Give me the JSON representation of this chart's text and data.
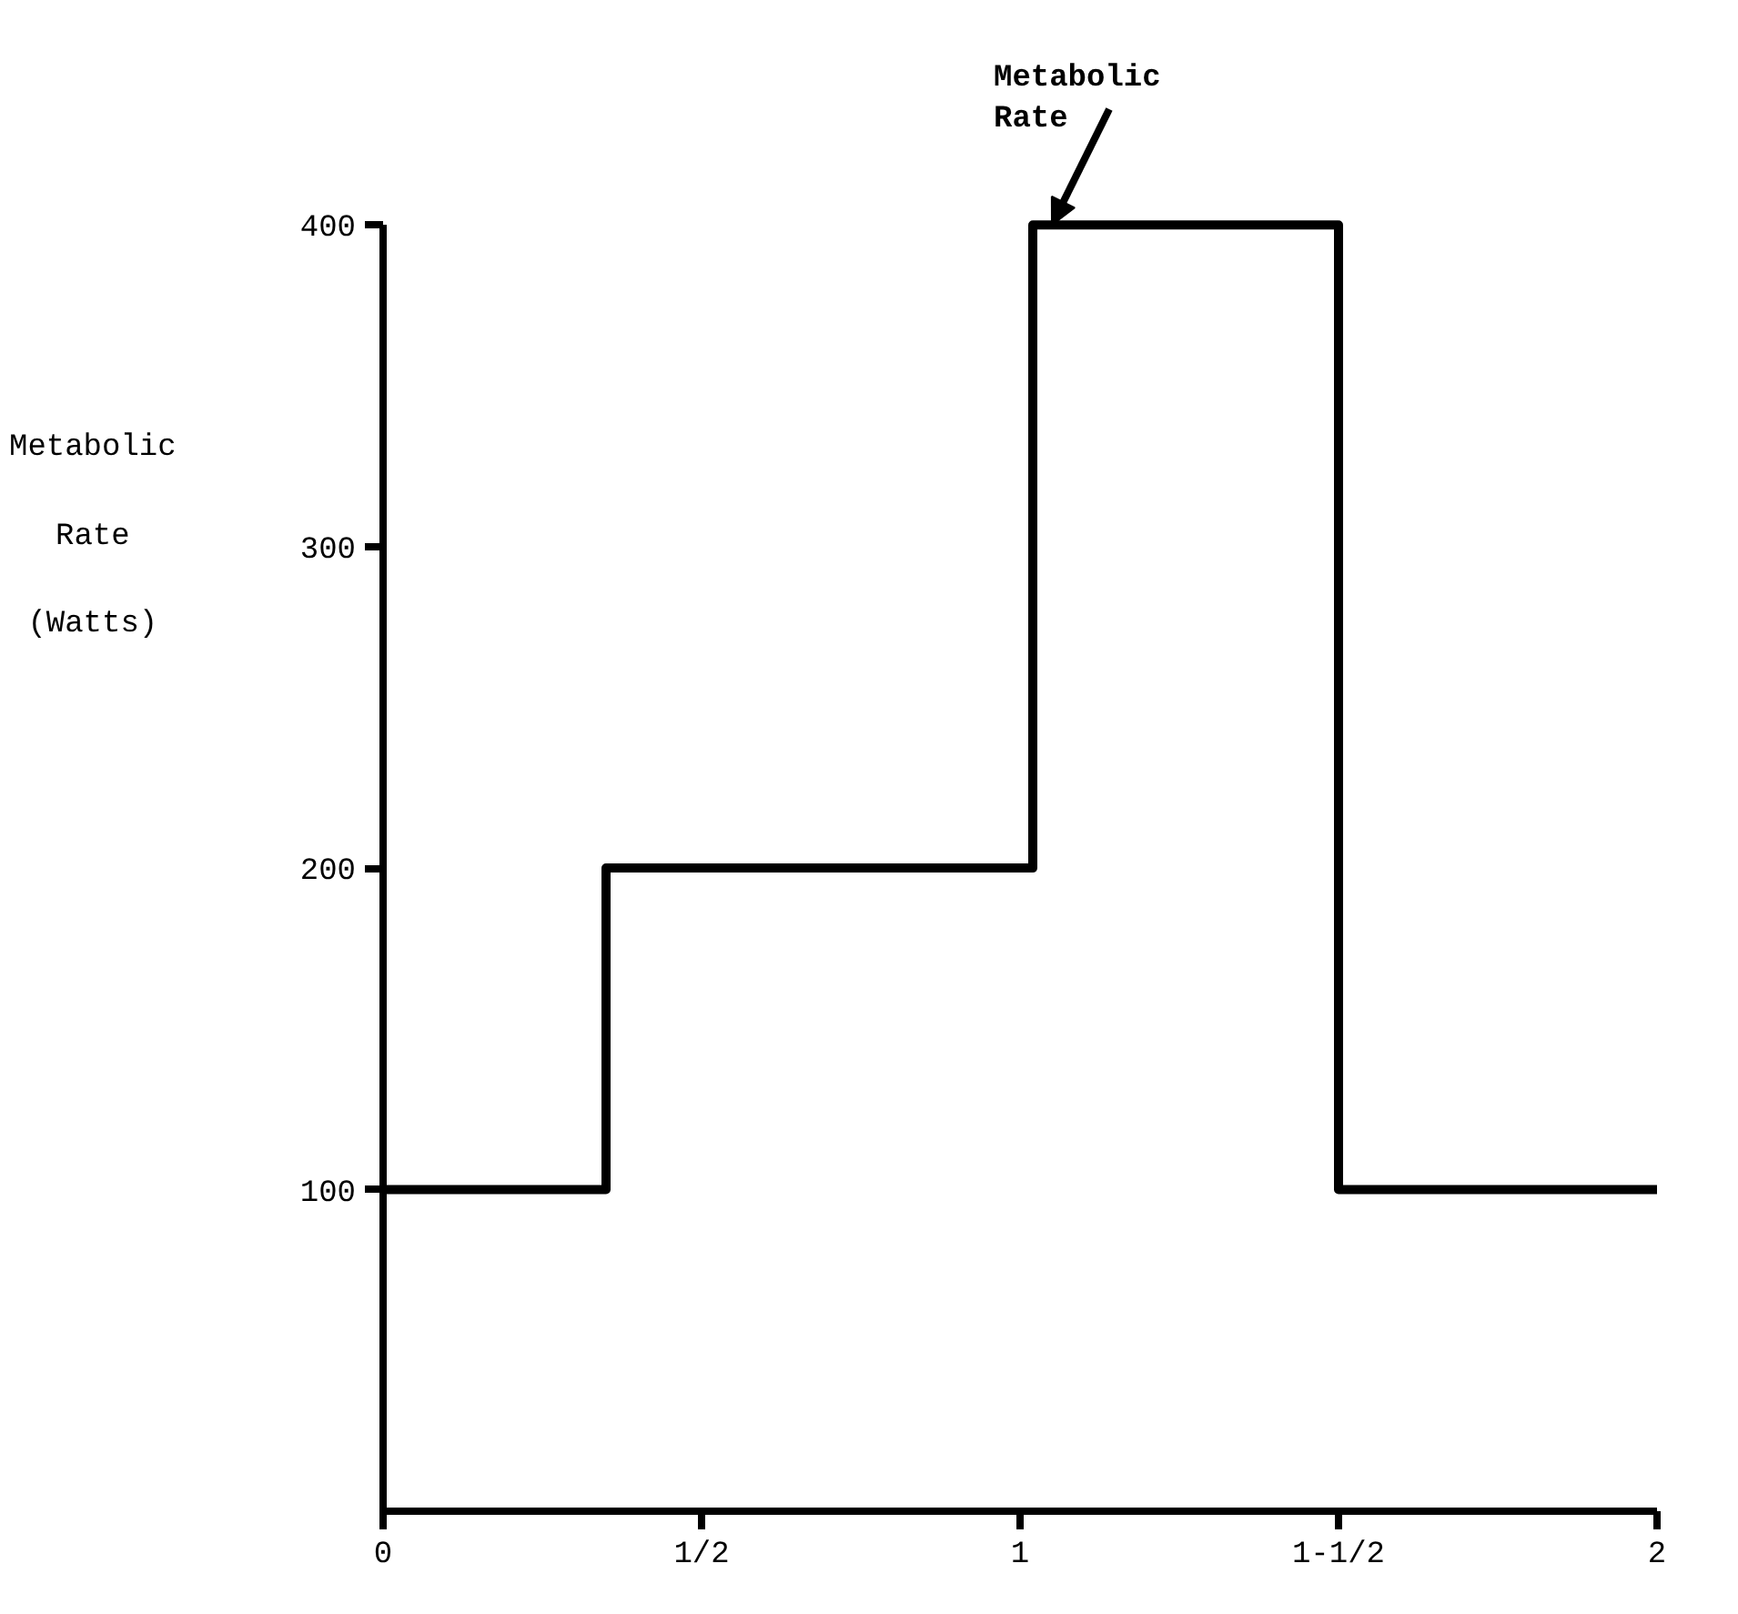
{
  "chart_data": {
    "type": "step",
    "ylabel": "Metabolic Rate (Watts)",
    "x": [
      0,
      0.35,
      1.02,
      1.5,
      2
    ],
    "values": [
      100,
      200,
      400,
      100,
      100
    ],
    "color": "#000000",
    "xlim": [
      0,
      2
    ],
    "ylim": [
      0,
      400
    ],
    "xticks": [
      0,
      {
        "value": 0.5,
        "label": "1/2"
      },
      1,
      {
        "value": 1.5,
        "label": "1-1/2"
      },
      2
    ],
    "yticks": [
      100,
      200,
      300,
      400
    ],
    "annotations": [
      {
        "text": "Metabolic Rate",
        "x": 1.05,
        "y": 400
      }
    ],
    "grid": false
  }
}
